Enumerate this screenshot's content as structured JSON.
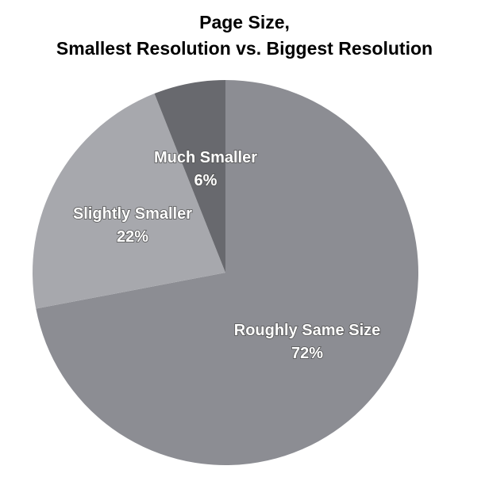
{
  "chart_data": {
    "type": "pie",
    "title": [
      "Page Size,",
      "Smallest Resolution vs. Biggest Resolution"
    ],
    "slices": [
      {
        "label": "Roughly Same Size",
        "value": 72,
        "value_label": "72%",
        "color": "#8c8d93"
      },
      {
        "label": "Slightly Smaller",
        "value": 22,
        "value_label": "22%",
        "color": "#a7a8ad"
      },
      {
        "label": "Much Smaller",
        "value": 6,
        "value_label": "6%",
        "color": "#68696e"
      }
    ],
    "start": "12 o'clock",
    "direction": "clockwise",
    "legend": "none"
  }
}
